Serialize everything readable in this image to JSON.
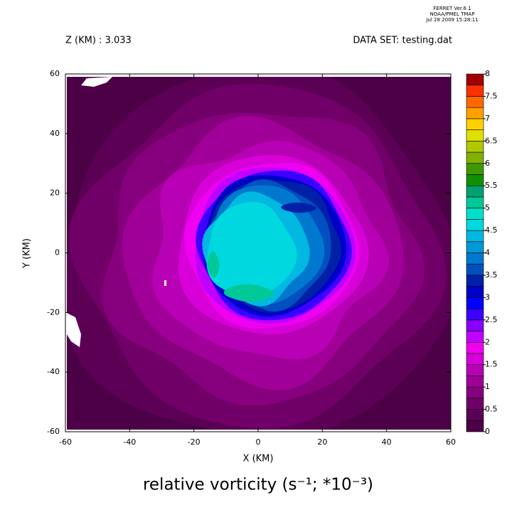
{
  "chart_data": {
    "type": "contour",
    "title": "relative vorticity (s⁻¹; *10⁻³)",
    "header": [
      "FERRET  Ver.6.1",
      "NOAA/PMEL TMAP",
      "Jul 28 2009 15:28:11"
    ],
    "subtitle_left": "Z (KM) : 3.033",
    "subtitle_right": "DATA SET: testing.dat",
    "x_label": "X (KM)",
    "y_label": "Y (KM)",
    "xlim": [
      -60,
      60
    ],
    "ylim": [
      -60,
      60
    ],
    "xticks": [
      -60,
      -40,
      -20,
      0,
      20,
      40,
      60
    ],
    "yticks": [
      -60,
      -40,
      -20,
      0,
      20,
      40,
      60
    ],
    "levels": [
      0,
      0.25,
      0.5,
      0.75,
      1,
      1.25,
      1.5,
      1.75,
      2,
      2.25,
      2.5,
      2.75,
      3,
      3.25,
      3.5,
      3.75,
      4,
      4.25,
      4.5,
      4.75,
      5,
      5.25,
      5.5,
      5.75,
      6,
      6.25,
      6.5,
      6.75,
      7,
      7.25,
      7.5,
      7.75,
      8
    ],
    "colorbar_ticks": [
      0,
      0.5,
      1,
      1.5,
      2,
      2.5,
      3,
      3.5,
      4,
      4.5,
      5,
      5.5,
      6,
      6.5,
      7,
      7.5,
      8
    ],
    "colors": [
      "#4c0046",
      "#5c0056",
      "#700068",
      "#86007e",
      "#a00098",
      "#b800b4",
      "#d800d8",
      "#f000f0",
      "#c000ff",
      "#8800ff",
      "#3c00ff",
      "#0000ff",
      "#0000c8",
      "#0020a8",
      "#0050c0",
      "#0078d0",
      "#0098d8",
      "#00b8e0",
      "#00d8e0",
      "#00e0c8",
      "#00c898",
      "#00a070",
      "#109000",
      "#409800",
      "#80b000",
      "#b0c800",
      "#e0e000",
      "#ffd000",
      "#ffa000",
      "#ff6800",
      "#ff3000",
      "#a00000"
    ]
  }
}
